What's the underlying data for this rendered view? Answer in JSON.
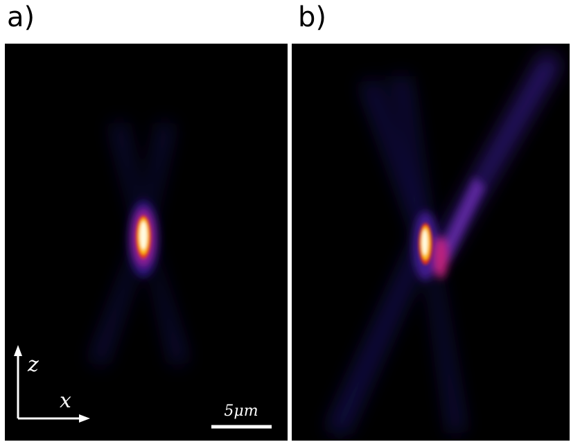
{
  "panels": [
    {
      "label": "a)"
    },
    {
      "label": "b)"
    }
  ],
  "axes": {
    "z": "z",
    "x": "x"
  },
  "scale_bar": "5μm"
}
